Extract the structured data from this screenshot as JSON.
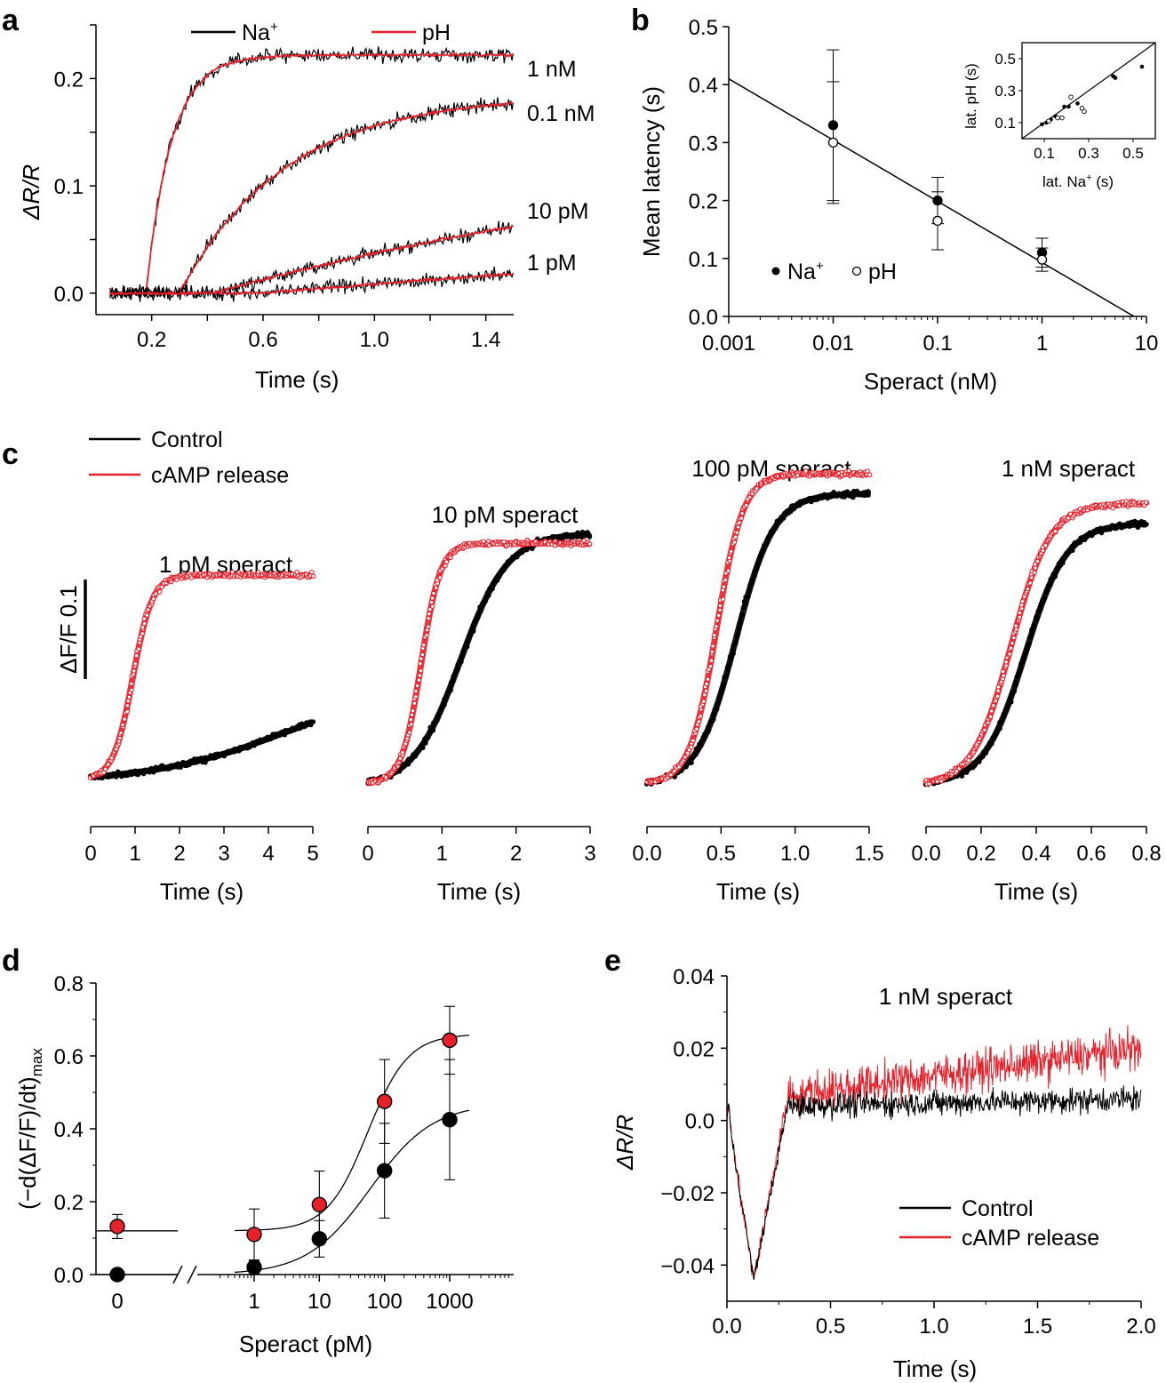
{
  "colors": {
    "black": "#000000",
    "red": "#e8202a"
  },
  "chart_data": [
    {
      "panel": "a",
      "type": "line",
      "xlabel": "Time  (s)",
      "ylabel": "ΔR/R",
      "xlim": [
        0.0,
        1.5
      ],
      "ylim": [
        -0.02,
        0.25
      ],
      "xticks": [
        "0.2",
        "0.6",
        "1.0",
        "1.4"
      ],
      "yticks": [
        "0.0",
        "0.1",
        "0.2"
      ],
      "legend": [
        {
          "name": "Na",
          "sup": "+",
          "color": "#000000"
        },
        {
          "name": "pH",
          "sup": "",
          "color": "#e8202a"
        }
      ],
      "series": [
        {
          "label": "1 nM",
          "onset_s": 0.18,
          "tau_s": 0.09,
          "amplitude": 0.222,
          "end_value": 0.222
        },
        {
          "label": "0.1 nM",
          "onset_s": 0.3,
          "tau_s": 0.38,
          "amplitude": 0.185,
          "end_value": 0.175
        },
        {
          "label": "10 pM",
          "onset_s": 0.42,
          "tau_s": 2.2,
          "amplitude": 0.16,
          "end_value": 0.065
        },
        {
          "label": "1 pM",
          "onset_s": 0.6,
          "tau_s": 6.0,
          "amplitude": 0.13,
          "end_value": 0.012
        }
      ]
    },
    {
      "panel": "b",
      "type": "scatter",
      "xlabel": "Speract (nM)",
      "ylabel": "Mean latency (s)",
      "xscale": "log",
      "xlim": [
        0.001,
        10
      ],
      "ylim": [
        0.0,
        0.5
      ],
      "xticks": [
        "0.001",
        "0.01",
        "0.1",
        "1",
        "10"
      ],
      "yticks": [
        "0.0",
        "0.1",
        "0.2",
        "0.3",
        "0.4",
        "0.5"
      ],
      "legend": [
        {
          "name": "Na",
          "sup": "+",
          "marker": "filled"
        },
        {
          "name": "pH",
          "sup": "",
          "marker": "open"
        }
      ],
      "fit_line": {
        "x": [
          0.001,
          7.6
        ],
        "y": [
          0.41,
          0.0
        ]
      },
      "series": [
        {
          "name": "Na+",
          "x": [
            0.01,
            0.1,
            1
          ],
          "y": [
            0.33,
            0.2,
            0.11
          ],
          "err": [
            0.13,
            0.04,
            0.025
          ]
        },
        {
          "name": "pH",
          "x": [
            0.01,
            0.1,
            1
          ],
          "y": [
            0.3,
            0.165,
            0.098
          ],
          "err": [
            0.105,
            0.05,
            0.02
          ]
        }
      ],
      "inset": {
        "xlabel": "lat. Na",
        "xlabel_sup": "+",
        "xlabel_unit": " (s)",
        "ylabel": "lat. pH (s)",
        "xlim": [
          0.0,
          0.6
        ],
        "ylim": [
          0.0,
          0.6
        ],
        "xticks": [
          "0.1",
          "0.3",
          "0.5"
        ],
        "yticks": [
          "0.1",
          "0.3",
          "0.5"
        ],
        "filled": [
          [
            0.09,
            0.09
          ],
          [
            0.11,
            0.1
          ],
          [
            0.13,
            0.12
          ],
          [
            0.15,
            0.14
          ],
          [
            0.19,
            0.2
          ],
          [
            0.21,
            0.2
          ],
          [
            0.25,
            0.22
          ],
          [
            0.41,
            0.39
          ],
          [
            0.42,
            0.38
          ],
          [
            0.54,
            0.45
          ]
        ],
        "open": [
          [
            0.12,
            0.11
          ],
          [
            0.16,
            0.13
          ],
          [
            0.18,
            0.13
          ],
          [
            0.22,
            0.26
          ],
          [
            0.27,
            0.19
          ],
          [
            0.28,
            0.17
          ]
        ]
      }
    },
    {
      "panel": "c",
      "type": "line",
      "scale_bar": {
        "label": "ΔF/F 0.1",
        "value": 0.1
      },
      "legend": [
        {
          "name": "Control",
          "color": "#000000"
        },
        {
          "name": "cAMP release",
          "color": "#e8202a"
        }
      ],
      "subplots": [
        {
          "title": "1 pM speract",
          "xlabel": "Time (s)",
          "xlim": [
            0,
            5
          ],
          "xticks": [
            "0",
            "1",
            "2",
            "3",
            "4",
            "5"
          ],
          "control": {
            "onset_s": 0.8,
            "mid_s": 4.4,
            "width_s": 1.5,
            "start": 0.0,
            "plateau": 0.19
          },
          "camp": {
            "onset_s": 0.55,
            "mid_s": 0.95,
            "width_s": 0.22,
            "start": 0.0,
            "plateau": 0.405
          }
        },
        {
          "title": "10 pM speract",
          "xlabel": "Time (s)",
          "xlim": [
            0,
            3
          ],
          "xticks": [
            "0",
            "1",
            "2",
            "3"
          ],
          "control": {
            "onset_s": 0.35,
            "mid_s": 1.25,
            "width_s": 0.32,
            "start": 0.0,
            "plateau": 0.5
          },
          "camp": {
            "onset_s": 0.3,
            "mid_s": 0.72,
            "width_s": 0.13,
            "start": 0.0,
            "plateau": 0.48
          }
        },
        {
          "title": "100 pM speract",
          "xlabel": "Time (s)",
          "xlim": [
            0.0,
            1.5
          ],
          "xticks": [
            "0.0",
            "0.5",
            "1.0",
            "1.5"
          ],
          "control": {
            "onset_s": 0.2,
            "mid_s": 0.6,
            "width_s": 0.13,
            "start": 0.0,
            "plateau": 0.58
          },
          "camp": {
            "onset_s": 0.2,
            "mid_s": 0.47,
            "width_s": 0.09,
            "start": 0.0,
            "plateau": 0.62
          }
        },
        {
          "title": "1 nM speract",
          "xlabel": "Time (s)",
          "xlim": [
            0.0,
            0.8
          ],
          "xticks": [
            "0.0",
            "0.2",
            "0.4",
            "0.6",
            "0.8"
          ],
          "control": {
            "onset_s": 0.13,
            "mid_s": 0.36,
            "width_s": 0.075,
            "start": 0.0,
            "plateau": 0.52
          },
          "camp": {
            "onset_s": 0.13,
            "mid_s": 0.31,
            "width_s": 0.07,
            "start": 0.0,
            "plateau": 0.56
          }
        }
      ]
    },
    {
      "panel": "d",
      "type": "scatter",
      "xlabel": "Speract (pM)",
      "ylabel": "(−d(ΔF/F)/dt)",
      "ylabel_sub": "max",
      "xscale": "log-with-break",
      "ylim": [
        0.0,
        0.8
      ],
      "xticks": [
        "0",
        "1",
        "10",
        "100",
        "1000"
      ],
      "yticks": [
        "0.0",
        "0.2",
        "0.4",
        "0.6",
        "0.8"
      ],
      "series": [
        {
          "name": "Control",
          "color": "#000000",
          "x": [
            0,
            1,
            10,
            100,
            1000
          ],
          "y": [
            0.0,
            0.02,
            0.098,
            0.285,
            0.425
          ],
          "err": [
            0.0,
            0.018,
            0.05,
            0.13,
            0.165
          ]
        },
        {
          "name": "cAMP release",
          "color": "#e8202a",
          "x": [
            0,
            1,
            10,
            100,
            1000
          ],
          "y": [
            0.132,
            0.11,
            0.192,
            0.475,
            0.643
          ],
          "err": [
            0.033,
            0.07,
            0.092,
            0.115,
            0.093
          ]
        }
      ],
      "fits": [
        {
          "name": "Control",
          "base": 0.0,
          "top": 0.47,
          "ec50_pM": 60,
          "hill": 0.9
        },
        {
          "name": "cAMP release",
          "base": 0.12,
          "top": 0.66,
          "ec50_pM": 55,
          "hill": 1.4
        }
      ]
    },
    {
      "panel": "e",
      "type": "line",
      "title": "1 nM speract",
      "xlabel": "Time  (s)",
      "ylabel": "ΔR/R",
      "xlim": [
        0.0,
        2.0
      ],
      "ylim": [
        -0.05,
        0.04
      ],
      "xticks": [
        "0.0",
        "0.5",
        "1.0",
        "1.5",
        "2.0"
      ],
      "yticks": [
        "0.04",
        "0.02",
        "0.0",
        "−0.02",
        "−0.04"
      ],
      "legend": [
        {
          "name": "Control",
          "color": "#000000"
        },
        {
          "name": "cAMP release",
          "color": "#e8202a"
        }
      ],
      "series": [
        {
          "name": "Control",
          "trough_time_s": 0.13,
          "trough_value": -0.044,
          "plateau_start": 0.004,
          "plateau_end": 0.006
        },
        {
          "name": "cAMP release",
          "trough_time_s": 0.13,
          "trough_value": -0.044,
          "plateau_start": 0.007,
          "plateau_end": 0.02
        }
      ]
    }
  ]
}
